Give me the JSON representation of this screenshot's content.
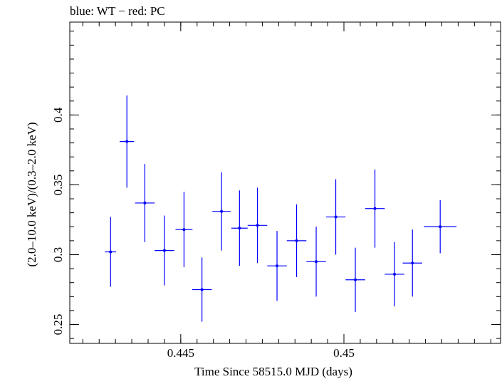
{
  "chart_data": {
    "type": "scatter",
    "title": "blue: WT − red: PC",
    "xlabel": "Time Since 58515.0 MJD (days)",
    "ylabel": "(2.0–10.0 keV)/(0.3–2.0 keV)",
    "xlim": [
      0.4416,
      0.4548
    ],
    "ylim": [
      0.2365,
      0.4665
    ],
    "x_ticks": [
      0.445,
      0.45
    ],
    "x_tick_labels": [
      "0.445",
      "0.45"
    ],
    "y_ticks": [
      0.25,
      0.3,
      0.35,
      0.4
    ],
    "y_tick_labels": [
      "0.25",
      "0.3",
      "0.35",
      "0.4"
    ],
    "grid": false,
    "series": [
      {
        "color": "#0000ff",
        "points": [
          {
            "x": 0.44285,
            "xerr": 0.00017,
            "y": 0.302,
            "yerr": 0.025
          },
          {
            "x": 0.44335,
            "xerr": 0.00022,
            "y": 0.381,
            "yerr": 0.033
          },
          {
            "x": 0.4439,
            "xerr": 0.0003,
            "y": 0.337,
            "yerr": 0.028
          },
          {
            "x": 0.4445,
            "xerr": 0.0003,
            "y": 0.303,
            "yerr": 0.025
          },
          {
            "x": 0.4451,
            "xerr": 0.00026,
            "y": 0.318,
            "yerr": 0.027
          },
          {
            "x": 0.44565,
            "xerr": 0.0003,
            "y": 0.275,
            "yerr": 0.023
          },
          {
            "x": 0.44625,
            "xerr": 0.00028,
            "y": 0.331,
            "yerr": 0.028
          },
          {
            "x": 0.4468,
            "xerr": 0.00025,
            "y": 0.319,
            "yerr": 0.027
          },
          {
            "x": 0.44735,
            "xerr": 0.0003,
            "y": 0.321,
            "yerr": 0.027
          },
          {
            "x": 0.44795,
            "xerr": 0.0003,
            "y": 0.292,
            "yerr": 0.025
          },
          {
            "x": 0.44855,
            "xerr": 0.0003,
            "y": 0.31,
            "yerr": 0.026
          },
          {
            "x": 0.44915,
            "xerr": 0.0003,
            "y": 0.295,
            "yerr": 0.025
          },
          {
            "x": 0.44975,
            "xerr": 0.0003,
            "y": 0.327,
            "yerr": 0.027
          },
          {
            "x": 0.45035,
            "xerr": 0.0003,
            "y": 0.282,
            "yerr": 0.023
          },
          {
            "x": 0.45095,
            "xerr": 0.0003,
            "y": 0.333,
            "yerr": 0.028
          },
          {
            "x": 0.45155,
            "xerr": 0.0003,
            "y": 0.286,
            "yerr": 0.023
          },
          {
            "x": 0.4521,
            "xerr": 0.0003,
            "y": 0.294,
            "yerr": 0.024
          },
          {
            "x": 0.45295,
            "xerr": 0.0005,
            "y": 0.32,
            "yerr": 0.019
          }
        ]
      }
    ]
  }
}
